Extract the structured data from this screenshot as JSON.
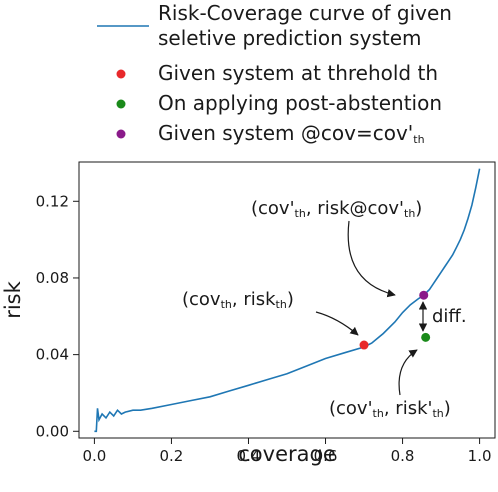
{
  "chart_data": {
    "type": "line",
    "xlabel": "coverage",
    "ylabel": "risk",
    "xlim": [
      -0.04,
      1.04
    ],
    "ylim": [
      -0.0035,
      0.1405
    ],
    "x_ticks": [
      {
        "value": 0.0,
        "label": "0.0"
      },
      {
        "value": 0.2,
        "label": "0.2"
      },
      {
        "value": 0.4,
        "label": "0.4"
      },
      {
        "value": 0.6,
        "label": "0.6"
      },
      {
        "value": 0.8,
        "label": "0.8"
      },
      {
        "value": 1.0,
        "label": "1.0"
      }
    ],
    "y_ticks": [
      {
        "value": 0.0,
        "label": "0.00"
      },
      {
        "value": 0.04,
        "label": "0.04"
      },
      {
        "value": 0.08,
        "label": "0.08"
      },
      {
        "value": 0.12,
        "label": "0.12"
      }
    ],
    "grid": false,
    "legend_position": "top",
    "curve": {
      "name": "Risk-Coverage curve of given seletive prediction system",
      "color": "#1f77b4",
      "x": [
        0.0,
        0.005,
        0.008,
        0.012,
        0.02,
        0.03,
        0.04,
        0.05,
        0.06,
        0.07,
        0.08,
        0.1,
        0.12,
        0.15,
        0.2,
        0.25,
        0.3,
        0.35,
        0.4,
        0.45,
        0.5,
        0.55,
        0.6,
        0.65,
        0.7,
        0.72,
        0.75,
        0.78,
        0.8,
        0.82,
        0.84,
        0.855,
        0.87,
        0.88,
        0.89,
        0.9,
        0.91,
        0.92,
        0.93,
        0.94,
        0.95,
        0.96,
        0.97,
        0.98,
        0.99,
        1.0
      ],
      "y": [
        0.0,
        0.0,
        0.012,
        0.006,
        0.009,
        0.007,
        0.01,
        0.008,
        0.011,
        0.009,
        0.01,
        0.011,
        0.011,
        0.012,
        0.014,
        0.016,
        0.018,
        0.021,
        0.024,
        0.027,
        0.03,
        0.034,
        0.038,
        0.041,
        0.044,
        0.046,
        0.051,
        0.057,
        0.062,
        0.066,
        0.069,
        0.071,
        0.074,
        0.077,
        0.08,
        0.083,
        0.086,
        0.089,
        0.092,
        0.096,
        0.1,
        0.105,
        0.111,
        0.118,
        0.127,
        0.137
      ]
    },
    "points": [
      {
        "name": "Given system at threhold th",
        "color": "#e8292b",
        "x": 0.7,
        "y": 0.045
      },
      {
        "name": "On applying post-abstention",
        "color": "#1a8a1a",
        "x": 0.86,
        "y": 0.049
      },
      {
        "name": "Given system @cov=cov'th",
        "color": "#8a1a8a",
        "x": 0.855,
        "y": 0.071
      }
    ],
    "legend": {
      "line_label_1": "Risk-Coverage curve of given",
      "line_label_2": "seletive prediction system",
      "red_label": "Given system at threhold th",
      "green_label": "On applying post-abstention",
      "purple_label_main": "Given system @cov=cov'",
      "purple_label_sub": "th"
    },
    "annotations": {
      "cov_prime_risk_at": {
        "p1": "(cov'",
        "s1": "th",
        "p2": ", risk@cov'",
        "s2": "th",
        "p3": ")"
      },
      "cov_risk": {
        "p1": "(cov",
        "s1": "th",
        "p2": ", risk",
        "s2": "th",
        "p3": ")"
      },
      "diff": "diff.",
      "cov_prime_risk_prime": {
        "p1": "(cov'",
        "s1": "th",
        "p2": ", risk'",
        "s2": "th",
        "p3": ")"
      }
    }
  }
}
